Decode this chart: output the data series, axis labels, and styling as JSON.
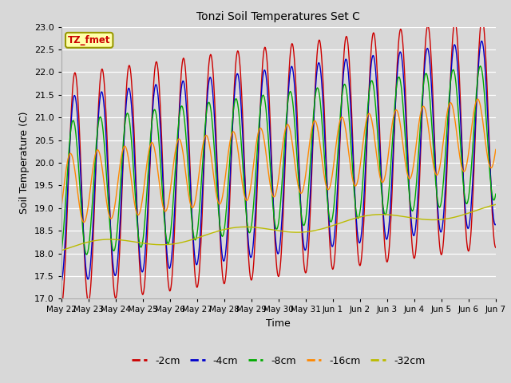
{
  "title": "Tonzi Soil Temperatures Set C",
  "xlabel": "Time",
  "ylabel": "Soil Temperature (C)",
  "ylim": [
    17.0,
    23.0
  ],
  "yticks": [
    17.0,
    17.5,
    18.0,
    18.5,
    19.0,
    19.5,
    20.0,
    20.5,
    21.0,
    21.5,
    22.0,
    22.5,
    23.0
  ],
  "colors": {
    "-2cm": "#cc0000",
    "-4cm": "#0000cc",
    "-8cm": "#00aa00",
    "-16cm": "#ff8800",
    "-32cm": "#bbbb00"
  },
  "legend_label": "TZ_fmet",
  "legend_bg": "#ffffaa",
  "legend_border": "#999900",
  "bg_color": "#d8d8d8",
  "linewidth": 1.0,
  "xtick_labels": [
    "May 22",
    "May 23",
    "May 24",
    "May 25",
    "May 26",
    "May 27",
    "May 28",
    "May 29",
    "May 30",
    "May 31",
    "Jun 1",
    "Jun 2",
    "Jun 3",
    "Jun 4",
    "Jun 5",
    "Jun 6",
    "Jun 7"
  ]
}
